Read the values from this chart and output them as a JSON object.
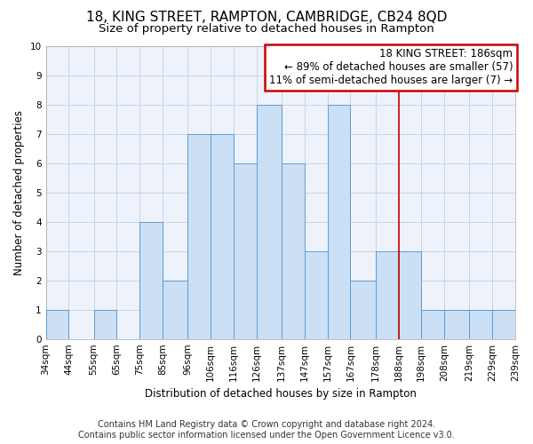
{
  "title": "18, KING STREET, RAMPTON, CAMBRIDGE, CB24 8QD",
  "subtitle": "Size of property relative to detached houses in Rampton",
  "xlabel": "Distribution of detached houses by size in Rampton",
  "ylabel": "Number of detached properties",
  "footer_line1": "Contains HM Land Registry data © Crown copyright and database right 2024.",
  "footer_line2": "Contains public sector information licensed under the Open Government Licence v3.0.",
  "annotation_line1": "18 KING STREET: 186sqm",
  "annotation_line2": "← 89% of detached houses are smaller (57)",
  "annotation_line3": "11% of semi-detached houses are larger (7) →",
  "bin_edges": [
    34,
    44,
    55,
    65,
    75,
    85,
    96,
    106,
    116,
    126,
    137,
    147,
    157,
    167,
    178,
    188,
    198,
    208,
    219,
    229,
    239
  ],
  "bin_labels": [
    "34sqm",
    "44sqm",
    "55sqm",
    "65sqm",
    "75sqm",
    "85sqm",
    "96sqm",
    "106sqm",
    "116sqm",
    "126sqm",
    "137sqm",
    "147sqm",
    "157sqm",
    "167sqm",
    "178sqm",
    "188sqm",
    "198sqm",
    "208sqm",
    "219sqm",
    "229sqm",
    "239sqm"
  ],
  "bar_values": [
    1,
    0,
    1,
    0,
    4,
    2,
    7,
    7,
    6,
    8,
    6,
    3,
    8,
    2,
    3,
    3,
    1,
    1,
    1,
    1
  ],
  "bar_color": "#cce0f5",
  "bar_edge_color": "#5b9bd5",
  "vline_color": "#cc0000",
  "vline_x": 188,
  "ylim": [
    0,
    10
  ],
  "yticks": [
    0,
    1,
    2,
    3,
    4,
    5,
    6,
    7,
    8,
    9,
    10
  ],
  "grid_color": "#c8d4e8",
  "bg_color": "#eef2fb",
  "annotation_box_color": "#cc0000",
  "title_fontsize": 11,
  "subtitle_fontsize": 9.5,
  "axis_label_fontsize": 8.5,
  "tick_fontsize": 7.5,
  "footer_fontsize": 7,
  "annotation_fontsize": 8.5
}
